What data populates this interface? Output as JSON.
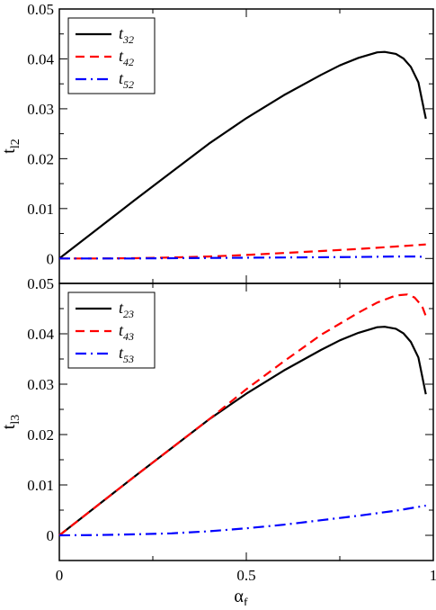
{
  "chart_data": [
    {
      "type": "line",
      "panel": "top",
      "xlabel": "",
      "ylabel": "t",
      "ylabel_sub": "l2",
      "xlim": [
        0,
        1
      ],
      "ylim": [
        -0.005,
        0.05
      ],
      "xticks": [
        0,
        0.5,
        1
      ],
      "xtick_labels": [
        "",
        "",
        ""
      ],
      "yticks": [
        0,
        0.01,
        0.02,
        0.03,
        0.04,
        0.05
      ],
      "ytick_labels": [
        "0",
        "0.01",
        "0.02",
        "0.03",
        "0.04",
        "0.05"
      ],
      "legend_position": "top-left",
      "series": [
        {
          "name": "t",
          "name_sub": "32",
          "color": "#000000",
          "dash": "solid",
          "x": [
            0,
            0.1,
            0.2,
            0.3,
            0.4,
            0.5,
            0.6,
            0.7,
            0.75,
            0.8,
            0.85,
            0.87,
            0.9,
            0.92,
            0.94,
            0.96,
            0.98
          ],
          "y": [
            0,
            0.0058,
            0.0116,
            0.0173,
            0.023,
            0.0281,
            0.0327,
            0.0368,
            0.0387,
            0.0402,
            0.0413,
            0.0414,
            0.041,
            0.0401,
            0.0384,
            0.0353,
            0.028
          ]
        },
        {
          "name": "t",
          "name_sub": "42",
          "color": "#ff0000",
          "dash": "dashed",
          "x": [
            0,
            0.1,
            0.2,
            0.3,
            0.4,
            0.5,
            0.6,
            0.7,
            0.8,
            0.9,
            0.98
          ],
          "y": [
            0,
            0,
            5e-05,
            0.0002,
            0.0004,
            0.0007,
            0.0011,
            0.0015,
            0.0019,
            0.0024,
            0.0028
          ]
        },
        {
          "name": "t",
          "name_sub": "52",
          "color": "#0000ff",
          "dash": "dashdot",
          "x": [
            0,
            0.2,
            0.4,
            0.6,
            0.8,
            0.9,
            0.95,
            0.98
          ],
          "y": [
            0,
            0,
            0.0001,
            0.0002,
            0.0003,
            0.0004,
            0.0004,
            0.0003
          ]
        }
      ]
    },
    {
      "type": "line",
      "panel": "bottom",
      "xlabel": "α",
      "xlabel_sub": "f",
      "ylabel": "t",
      "ylabel_sub": "l3",
      "xlim": [
        0,
        1
      ],
      "ylim": [
        -0.005,
        0.05
      ],
      "xticks": [
        0,
        0.5,
        1
      ],
      "xtick_labels": [
        "0",
        "0.5",
        "1"
      ],
      "yticks": [
        0,
        0.01,
        0.02,
        0.03,
        0.04,
        0.05
      ],
      "ytick_labels": [
        "0",
        "0.01",
        "0.02",
        "0.03",
        "0.04",
        "0.05"
      ],
      "legend_position": "top-left",
      "series": [
        {
          "name": "t",
          "name_sub": "23",
          "color": "#000000",
          "dash": "solid",
          "x": [
            0,
            0.1,
            0.2,
            0.3,
            0.4,
            0.5,
            0.6,
            0.7,
            0.75,
            0.8,
            0.85,
            0.87,
            0.9,
            0.92,
            0.94,
            0.96,
            0.98
          ],
          "y": [
            0,
            0.0058,
            0.0116,
            0.0173,
            0.023,
            0.0281,
            0.0327,
            0.0368,
            0.0387,
            0.0402,
            0.0413,
            0.0414,
            0.041,
            0.0401,
            0.0384,
            0.0353,
            0.028
          ]
        },
        {
          "name": "t",
          "name_sub": "43",
          "color": "#ff0000",
          "dash": "dashed",
          "x": [
            0,
            0.1,
            0.2,
            0.3,
            0.4,
            0.5,
            0.6,
            0.7,
            0.8,
            0.85,
            0.9,
            0.93,
            0.95,
            0.97,
            0.98
          ],
          "y": [
            0,
            0.0058,
            0.0116,
            0.0173,
            0.023,
            0.029,
            0.0345,
            0.0398,
            0.0442,
            0.0462,
            0.0476,
            0.0478,
            0.0472,
            0.0455,
            0.0435
          ]
        },
        {
          "name": "t",
          "name_sub": "53",
          "color": "#0000ff",
          "dash": "dashdot",
          "x": [
            0,
            0.1,
            0.2,
            0.3,
            0.4,
            0.5,
            0.6,
            0.7,
            0.8,
            0.9,
            0.98
          ],
          "y": [
            0,
            5e-05,
            0.0002,
            0.0004,
            0.0008,
            0.0014,
            0.0021,
            0.003,
            0.0039,
            0.0049,
            0.0059
          ]
        }
      ]
    }
  ]
}
